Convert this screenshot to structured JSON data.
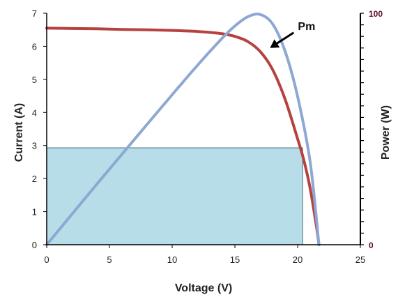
{
  "chart_data": {
    "type": "line",
    "title": "",
    "xlabel": "Voltage (V)",
    "ylabel_left": "Current (A)",
    "ylabel_right": "Power (W)",
    "xlim": [
      0,
      25
    ],
    "ylim_left": [
      0,
      7
    ],
    "ylim_right": [
      0,
      100
    ],
    "x_ticks": [
      "0",
      "5",
      "10",
      "15",
      "20",
      "25"
    ],
    "y_left_ticks": [
      "0",
      "1",
      "2",
      "3",
      "4",
      "5",
      "6",
      "7"
    ],
    "y_right_ticks": [
      "0",
      "100"
    ],
    "grid": false,
    "colors": {
      "current": "#b5423f",
      "power": "#8ea8d4",
      "rectangle_fill": "#b7dde8",
      "rectangle_stroke": "#4a6f86",
      "axis": "#000000"
    },
    "series": [
      {
        "axis": "left",
        "color": "#b5423f",
        "points": [
          [
            0,
            6.55
          ],
          [
            2,
            6.54
          ],
          [
            4,
            6.53
          ],
          [
            6,
            6.51
          ],
          [
            8,
            6.5
          ],
          [
            10,
            6.48
          ],
          [
            12,
            6.45
          ],
          [
            13,
            6.42
          ],
          [
            14,
            6.38
          ],
          [
            15,
            6.3
          ],
          [
            16,
            6.15
          ],
          [
            17,
            5.85
          ],
          [
            18,
            5.3
          ],
          [
            19,
            4.4
          ],
          [
            20,
            3.2
          ],
          [
            20.5,
            2.55
          ],
          [
            21,
            1.7
          ],
          [
            21.5,
            0.55
          ],
          [
            21.7,
            0
          ]
        ]
      },
      {
        "axis": "right",
        "color": "#8ea8d4",
        "points": [
          [
            0,
            0
          ],
          [
            2,
            13.1
          ],
          [
            4,
            26.2
          ],
          [
            6,
            39.1
          ],
          [
            8,
            52
          ],
          [
            10,
            64.8
          ],
          [
            12,
            77.4
          ],
          [
            14,
            89.3
          ],
          [
            15,
            94.5
          ],
          [
            16,
            98.4
          ],
          [
            17,
            99.5
          ],
          [
            18,
            95.4
          ],
          [
            19,
            83.6
          ],
          [
            20,
            64
          ],
          [
            21,
            35.7
          ],
          [
            21.7,
            0
          ]
        ]
      }
    ],
    "rectangle": {
      "x0": 0,
      "x1": 20.4,
      "y0": 0,
      "y1": 2.93,
      "axis": "left"
    },
    "annotations": [
      {
        "text": "Pm",
        "arrow_to": [
          17.8,
          5.95
        ],
        "axis": "left"
      }
    ]
  }
}
